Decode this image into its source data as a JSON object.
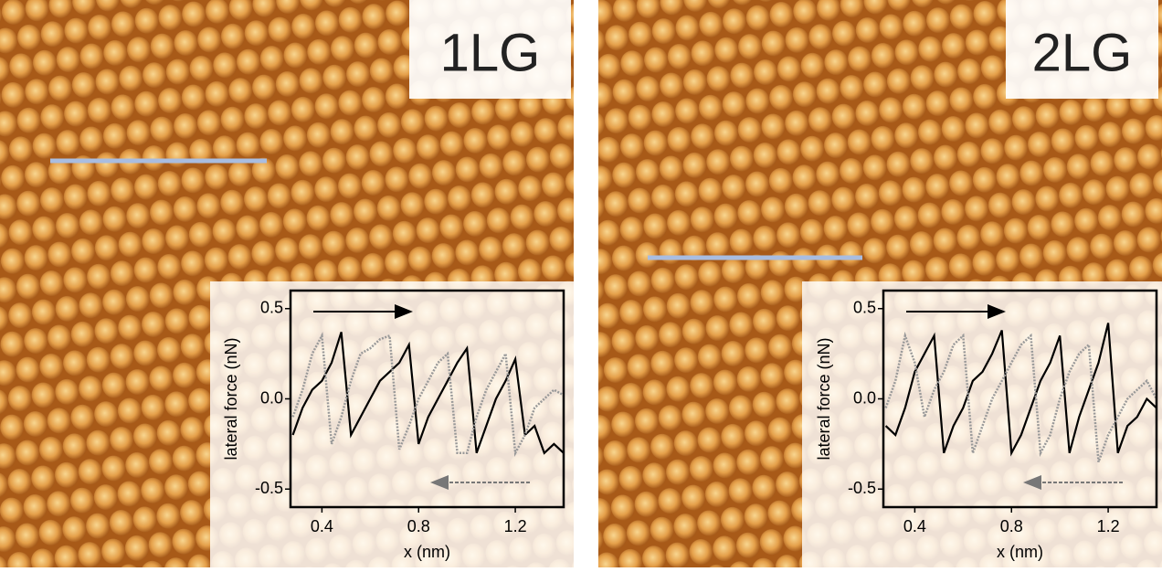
{
  "chart_data": [
    {
      "type": "line",
      "annotation": "1LG",
      "xlabel": "x (nm)",
      "ylabel": "lateral force (nN)",
      "x": [
        0.28,
        0.32,
        0.36,
        0.4,
        0.44,
        0.48,
        0.52,
        0.56,
        0.6,
        0.64,
        0.68,
        0.72,
        0.76,
        0.8,
        0.84,
        0.88,
        0.92,
        0.96,
        1.0,
        1.04,
        1.08,
        1.12,
        1.16,
        1.2,
        1.24,
        1.28,
        1.32,
        1.36,
        1.4
      ],
      "series": [
        {
          "color": "#000000",
          "style": "solid",
          "values": [
            -0.2,
            -0.05,
            0.05,
            0.1,
            0.2,
            0.37,
            -0.2,
            -0.1,
            0.0,
            0.1,
            0.15,
            0.2,
            0.3,
            -0.25,
            -0.1,
            0.0,
            0.1,
            0.2,
            0.28,
            -0.3,
            -0.15,
            0.0,
            0.1,
            0.22,
            -0.2,
            -0.15,
            -0.3,
            -0.25,
            -0.3
          ]
        },
        {
          "color": "#999999",
          "style": "dotted",
          "values": [
            -0.1,
            0.05,
            0.25,
            0.35,
            -0.25,
            -0.1,
            0.1,
            0.25,
            0.28,
            0.33,
            0.35,
            -0.28,
            -0.15,
            0.0,
            0.1,
            0.2,
            0.25,
            -0.3,
            -0.3,
            -0.1,
            0.05,
            0.15,
            0.25,
            -0.3,
            -0.2,
            -0.05,
            0.0,
            0.05,
            0.02
          ]
        }
      ],
      "xlim": [
        0.27,
        1.4
      ],
      "ylim": [
        -0.6,
        0.6
      ],
      "xticks": [
        0.4,
        0.8,
        1.2
      ],
      "yticks": [
        -0.5,
        {
          "value": 0,
          "label": "0.0"
        },
        0.5
      ]
    },
    {
      "type": "line",
      "annotation": "2LG",
      "xlabel": "x (nm)",
      "ylabel": "lateral force (nN)",
      "x": [
        0.28,
        0.32,
        0.36,
        0.4,
        0.44,
        0.48,
        0.52,
        0.56,
        0.6,
        0.64,
        0.68,
        0.72,
        0.76,
        0.8,
        0.84,
        0.88,
        0.92,
        0.96,
        1.0,
        1.04,
        1.08,
        1.12,
        1.16,
        1.2,
        1.24,
        1.28,
        1.32,
        1.36,
        1.4
      ],
      "series": [
        {
          "color": "#000000",
          "style": "solid",
          "values": [
            -0.15,
            -0.2,
            -0.05,
            0.15,
            0.25,
            0.35,
            -0.3,
            -0.15,
            -0.05,
            0.1,
            0.15,
            0.25,
            0.38,
            -0.3,
            -0.2,
            -0.05,
            0.1,
            0.2,
            0.35,
            -0.3,
            -0.1,
            0.05,
            0.2,
            0.42,
            -0.3,
            -0.15,
            -0.1,
            0.0,
            -0.05
          ]
        },
        {
          "color": "#999999",
          "style": "dotted",
          "values": [
            -0.05,
            0.1,
            0.35,
            0.2,
            -0.1,
            0.05,
            0.15,
            0.3,
            0.35,
            -0.3,
            -0.15,
            0.0,
            0.1,
            0.2,
            0.3,
            0.35,
            -0.3,
            -0.2,
            0.0,
            0.15,
            0.25,
            0.3,
            -0.35,
            -0.2,
            -0.1,
            0.0,
            0.05,
            0.1,
            0.0
          ]
        }
      ],
      "xlim": [
        0.27,
        1.4
      ],
      "ylim": [
        -0.6,
        0.6
      ],
      "xticks": [
        0.4,
        0.8,
        1.2
      ],
      "yticks": [
        -0.5,
        {
          "value": 0,
          "label": "0.0"
        },
        0.5
      ]
    }
  ]
}
